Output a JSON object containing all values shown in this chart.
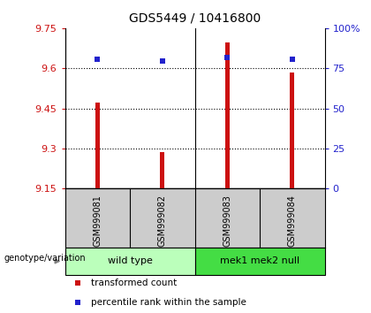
{
  "title": "GDS5449 / 10416800",
  "samples": [
    "GSM999081",
    "GSM999082",
    "GSM999083",
    "GSM999084"
  ],
  "transformed_counts": [
    9.47,
    9.285,
    9.695,
    9.585
  ],
  "percentile_ranks": [
    80.5,
    79.5,
    81.5,
    80.5
  ],
  "y_min": 9.15,
  "y_max": 9.75,
  "y_ticks": [
    9.15,
    9.3,
    9.45,
    9.6,
    9.75
  ],
  "y_tick_labels": [
    "9.15",
    "9.3",
    "9.45",
    "9.6",
    "9.75"
  ],
  "right_y_ticks": [
    0,
    25,
    50,
    75,
    100
  ],
  "right_y_labels": [
    "0",
    "25",
    "50",
    "75",
    "100%"
  ],
  "bar_color": "#cc1111",
  "dot_color": "#2222cc",
  "bar_width": 0.07,
  "groups": [
    {
      "label": "wild type",
      "samples": [
        0,
        1
      ],
      "color": "#bbffbb"
    },
    {
      "label": "mek1 mek2 null",
      "samples": [
        2,
        3
      ],
      "color": "#44dd44"
    }
  ],
  "group_row_label": "genotype/variation",
  "legend_bar_label": "transformed count",
  "legend_dot_label": "percentile rank within the sample",
  "background_color": "#ffffff",
  "plot_bg_color": "#ffffff",
  "grid_color": "#000000",
  "sample_box_color": "#cccccc",
  "title_fontsize": 10,
  "tick_fontsize": 8,
  "sample_fontsize": 7,
  "group_fontsize": 8,
  "legend_fontsize": 7.5
}
